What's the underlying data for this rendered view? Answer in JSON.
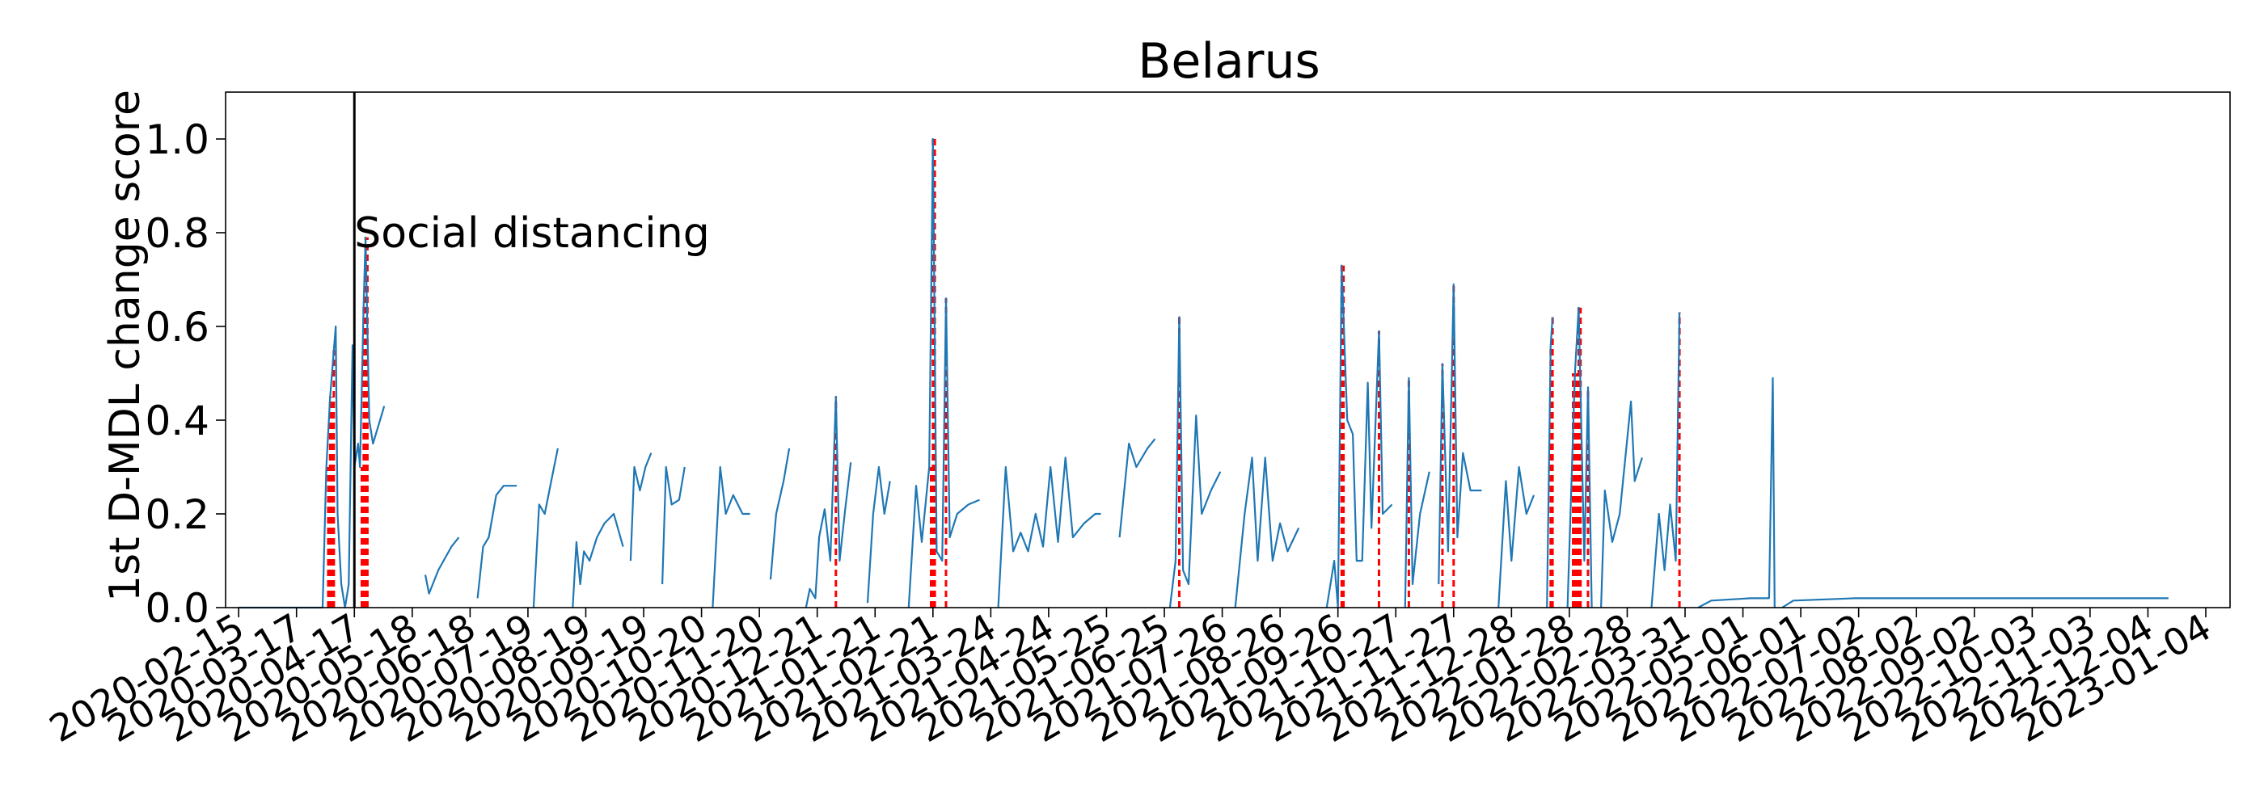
{
  "chart_data": {
    "type": "line",
    "title": "Belarus",
    "ylabel": "1st D-MDL change score",
    "xlabel": "",
    "xlim": [
      "2020-02-08",
      "2023-01-17"
    ],
    "ylim": [
      0.0,
      1.1
    ],
    "grid": false,
    "yticks": [
      "0.0",
      "0.2",
      "0.4",
      "0.6",
      "0.8",
      "1.0"
    ],
    "xticks": [
      "2020-02-15",
      "2020-03-17",
      "2020-04-17",
      "2020-05-18",
      "2020-06-18",
      "2020-07-19",
      "2020-08-19",
      "2020-09-19",
      "2020-10-20",
      "2020-11-20",
      "2020-12-21",
      "2021-01-21",
      "2021-02-21",
      "2021-03-24",
      "2021-04-24",
      "2021-05-25",
      "2021-06-25",
      "2021-07-26",
      "2021-08-26",
      "2021-09-26",
      "2021-10-27",
      "2021-11-27",
      "2021-12-28",
      "2022-01-28",
      "2022-02-28",
      "2022-03-31",
      "2022-05-01",
      "2022-06-01",
      "2022-07-02",
      "2022-08-02",
      "2022-09-02",
      "2022-10-03",
      "2022-11-03",
      "2022-12-04",
      "2023-01-04"
    ],
    "annotation": {
      "label": "Social distancing",
      "date": "2020-04-17",
      "y": 0.8
    },
    "series": [
      {
        "color": "#1f77b4",
        "points": [
          [
            "2020-02-15",
            0.0
          ],
          [
            "2020-03-31",
            0.0
          ],
          [
            "2020-04-02",
            0.3
          ],
          [
            "2020-04-04",
            0.45
          ],
          [
            "2020-04-06",
            0.55
          ],
          [
            "2020-04-07",
            0.6
          ],
          [
            "2020-04-08",
            0.2
          ],
          [
            "2020-04-10",
            0.05
          ],
          [
            "2020-04-12",
            0.0
          ],
          [
            "2020-04-14",
            0.05
          ],
          [
            "2020-04-16",
            0.56
          ],
          [
            "2020-04-17",
            0.3
          ],
          [
            "2020-04-19",
            0.35
          ],
          [
            "2020-04-20",
            0.3
          ],
          [
            "2020-04-22",
            0.65
          ],
          [
            "2020-04-23",
            0.79
          ],
          [
            "2020-04-25",
            0.4
          ],
          [
            "2020-04-27",
            0.35
          ],
          [
            "2020-04-30",
            0.39
          ],
          [
            "2020-05-03",
            0.43
          ],
          [
            "2020-05-04",
            null
          ],
          [
            "2020-05-25",
            0.07
          ],
          [
            "2020-05-27",
            0.03
          ],
          [
            "2020-06-01",
            0.08
          ],
          [
            "2020-06-08",
            0.13
          ],
          [
            "2020-06-12",
            0.15
          ],
          [
            "2020-06-13",
            null
          ],
          [
            "2020-06-22",
            0.02
          ],
          [
            "2020-06-25",
            0.13
          ],
          [
            "2020-06-28",
            0.15
          ],
          [
            "2020-07-02",
            0.24
          ],
          [
            "2020-07-06",
            0.26
          ],
          [
            "2020-07-10",
            0.26
          ],
          [
            "2020-07-13",
            0.26
          ],
          [
            "2020-07-14",
            null
          ],
          [
            "2020-07-22",
            0.0
          ],
          [
            "2020-07-25",
            0.22
          ],
          [
            "2020-07-28",
            0.2
          ],
          [
            "2020-08-01",
            0.28
          ],
          [
            "2020-08-04",
            0.34
          ],
          [
            "2020-08-05",
            null
          ],
          [
            "2020-08-12",
            0.0
          ],
          [
            "2020-08-14",
            0.14
          ],
          [
            "2020-08-16",
            0.05
          ],
          [
            "2020-08-18",
            0.12
          ],
          [
            "2020-08-21",
            0.1
          ],
          [
            "2020-08-25",
            0.15
          ],
          [
            "2020-08-29",
            0.18
          ],
          [
            "2020-09-03",
            0.2
          ],
          [
            "2020-09-08",
            0.13
          ],
          [
            "2020-09-09",
            null
          ],
          [
            "2020-09-12",
            0.1
          ],
          [
            "2020-09-14",
            0.3
          ],
          [
            "2020-09-17",
            0.25
          ],
          [
            "2020-09-20",
            0.3
          ],
          [
            "2020-09-23",
            0.33
          ],
          [
            "2020-09-24",
            null
          ],
          [
            "2020-09-29",
            0.05
          ],
          [
            "2020-10-01",
            0.3
          ],
          [
            "2020-10-04",
            0.22
          ],
          [
            "2020-10-08",
            0.23
          ],
          [
            "2020-10-11",
            0.3
          ],
          [
            "2020-10-12",
            null
          ],
          [
            "2020-10-26",
            0.0
          ],
          [
            "2020-10-30",
            0.3
          ],
          [
            "2020-11-02",
            0.2
          ],
          [
            "2020-11-06",
            0.24
          ],
          [
            "2020-11-11",
            0.2
          ],
          [
            "2020-11-15",
            0.2
          ],
          [
            "2020-11-16",
            null
          ],
          [
            "2020-11-26",
            0.06
          ],
          [
            "2020-11-29",
            0.2
          ],
          [
            "2020-12-03",
            0.27
          ],
          [
            "2020-12-06",
            0.34
          ],
          [
            "2020-12-07",
            null
          ],
          [
            "2020-12-15",
            0.0
          ],
          [
            "2020-12-17",
            0.04
          ],
          [
            "2020-12-20",
            0.02
          ],
          [
            "2020-12-22",
            0.15
          ],
          [
            "2020-12-25",
            0.21
          ],
          [
            "2020-12-28",
            0.1
          ],
          [
            "2020-12-31",
            0.45
          ],
          [
            "2021-01-02",
            0.1
          ],
          [
            "2021-01-05",
            0.21
          ],
          [
            "2021-01-08",
            0.31
          ],
          [
            "2021-01-09",
            null
          ],
          [
            "2021-01-17",
            0.01
          ],
          [
            "2021-01-20",
            0.2
          ],
          [
            "2021-01-23",
            0.3
          ],
          [
            "2021-01-26",
            0.2
          ],
          [
            "2021-01-29",
            0.27
          ],
          [
            "2021-01-30",
            null
          ],
          [
            "2021-02-08",
            0.0
          ],
          [
            "2021-02-12",
            0.26
          ],
          [
            "2021-02-15",
            0.14
          ],
          [
            "2021-02-19",
            0.3
          ],
          [
            "2021-02-21",
            1.0
          ],
          [
            "2021-02-23",
            0.12
          ],
          [
            "2021-02-26",
            0.1
          ],
          [
            "2021-02-28",
            0.66
          ],
          [
            "2021-03-02",
            0.15
          ],
          [
            "2021-03-06",
            0.2
          ],
          [
            "2021-03-12",
            0.22
          ],
          [
            "2021-03-18",
            0.23
          ],
          [
            "2021-03-19",
            null
          ],
          [
            "2021-03-28",
            0.0
          ],
          [
            "2021-04-01",
            0.3
          ],
          [
            "2021-04-05",
            0.12
          ],
          [
            "2021-04-09",
            0.16
          ],
          [
            "2021-04-13",
            0.12
          ],
          [
            "2021-04-17",
            0.2
          ],
          [
            "2021-04-21",
            0.13
          ],
          [
            "2021-04-25",
            0.3
          ],
          [
            "2021-04-29",
            0.14
          ],
          [
            "2021-05-03",
            0.32
          ],
          [
            "2021-05-07",
            0.15
          ],
          [
            "2021-05-13",
            0.18
          ],
          [
            "2021-05-19",
            0.2
          ],
          [
            "2021-05-22",
            0.2
          ],
          [
            "2021-05-23",
            null
          ],
          [
            "2021-06-01",
            0.15
          ],
          [
            "2021-06-06",
            0.35
          ],
          [
            "2021-06-10",
            0.3
          ],
          [
            "2021-06-16",
            0.34
          ],
          [
            "2021-06-20",
            0.36
          ],
          [
            "2021-06-21",
            null
          ],
          [
            "2021-06-28",
            0.0
          ],
          [
            "2021-07-01",
            0.1
          ],
          [
            "2021-07-03",
            0.62
          ],
          [
            "2021-07-05",
            0.08
          ],
          [
            "2021-07-08",
            0.05
          ],
          [
            "2021-07-12",
            0.41
          ],
          [
            "2021-07-15",
            0.2
          ],
          [
            "2021-07-20",
            0.25
          ],
          [
            "2021-07-25",
            0.29
          ],
          [
            "2021-07-26",
            null
          ],
          [
            "2021-08-02",
            0.0
          ],
          [
            "2021-08-07",
            0.2
          ],
          [
            "2021-08-11",
            0.32
          ],
          [
            "2021-08-14",
            0.1
          ],
          [
            "2021-08-18",
            0.32
          ],
          [
            "2021-08-22",
            0.1
          ],
          [
            "2021-08-26",
            0.18
          ],
          [
            "2021-08-30",
            0.12
          ],
          [
            "2021-09-05",
            0.17
          ],
          [
            "2021-09-07",
            null
          ],
          [
            "2021-09-20",
            0.0
          ],
          [
            "2021-09-24",
            0.1
          ],
          [
            "2021-09-26",
            0.0
          ],
          [
            "2021-09-28",
            0.73
          ],
          [
            "2021-10-01",
            0.4
          ],
          [
            "2021-10-04",
            0.37
          ],
          [
            "2021-10-06",
            0.1
          ],
          [
            "2021-10-09",
            0.1
          ],
          [
            "2021-10-12",
            0.48
          ],
          [
            "2021-10-14",
            0.17
          ],
          [
            "2021-10-18",
            0.59
          ],
          [
            "2021-10-20",
            0.2
          ],
          [
            "2021-10-25",
            0.22
          ],
          [
            "2021-10-26",
            null
          ],
          [
            "2021-11-01",
            0.0
          ],
          [
            "2021-11-03",
            0.49
          ],
          [
            "2021-11-05",
            0.05
          ],
          [
            "2021-11-09",
            0.2
          ],
          [
            "2021-11-14",
            0.29
          ],
          [
            "2021-11-15",
            null
          ],
          [
            "2021-11-19",
            0.05
          ],
          [
            "2021-11-21",
            0.52
          ],
          [
            "2021-11-24",
            0.12
          ],
          [
            "2021-11-27",
            0.69
          ],
          [
            "2021-11-29",
            0.15
          ],
          [
            "2021-12-02",
            0.33
          ],
          [
            "2021-12-06",
            0.25
          ],
          [
            "2021-12-12",
            0.25
          ],
          [
            "2021-12-13",
            null
          ],
          [
            "2021-12-21",
            0.0
          ],
          [
            "2021-12-25",
            0.27
          ],
          [
            "2021-12-28",
            0.1
          ],
          [
            "2022-01-01",
            0.3
          ],
          [
            "2022-01-05",
            0.2
          ],
          [
            "2022-01-09",
            0.24
          ],
          [
            "2022-01-10",
            null
          ],
          [
            "2022-01-16",
            0.0
          ],
          [
            "2022-01-18",
            0.56
          ],
          [
            "2022-01-19",
            0.62
          ],
          [
            "2022-01-20",
            null
          ],
          [
            "2022-01-27",
            0.0
          ],
          [
            "2022-01-31",
            0.5
          ],
          [
            "2022-02-02",
            0.64
          ],
          [
            "2022-02-05",
            0.1
          ],
          [
            "2022-02-07",
            0.47
          ],
          [
            "2022-02-09",
            0.0
          ],
          [
            "2022-02-10",
            null
          ],
          [
            "2022-02-14",
            0.0
          ],
          [
            "2022-02-16",
            0.25
          ],
          [
            "2022-02-20",
            0.14
          ],
          [
            "2022-02-24",
            0.2
          ],
          [
            "2022-03-02",
            0.44
          ],
          [
            "2022-03-04",
            0.27
          ],
          [
            "2022-03-08",
            0.32
          ],
          [
            "2022-03-09",
            null
          ],
          [
            "2022-03-13",
            0.0
          ],
          [
            "2022-03-17",
            0.2
          ],
          [
            "2022-03-20",
            0.08
          ],
          [
            "2022-03-23",
            0.22
          ],
          [
            "2022-03-26",
            0.1
          ],
          [
            "2022-03-28",
            0.63
          ],
          [
            "2022-03-29",
            null
          ],
          [
            "2022-04-07",
            0.0
          ],
          [
            "2022-04-14",
            0.015
          ],
          [
            "2022-05-05",
            0.02
          ],
          [
            "2022-05-15",
            0.02
          ],
          [
            "2022-05-17",
            0.49
          ],
          [
            "2022-05-18",
            0.0
          ],
          [
            "2022-05-19",
            null
          ],
          [
            "2022-05-22",
            0.0
          ],
          [
            "2022-05-28",
            0.015
          ],
          [
            "2022-06-30",
            0.02
          ],
          [
            "2022-09-10",
            0.02
          ],
          [
            "2022-12-15",
            0.02
          ]
        ]
      }
    ],
    "change_points": [
      "2020-04-03",
      "2020-04-04",
      "2020-04-05",
      "2020-04-06",
      "2020-04-21",
      "2020-04-22",
      "2020-04-23",
      "2020-04-24",
      "2020-12-31",
      "2021-02-20",
      "2021-02-21",
      "2021-02-22",
      "2021-02-28",
      "2021-07-03",
      "2021-09-28",
      "2021-09-29",
      "2021-10-18",
      "2021-11-03",
      "2021-11-21",
      "2021-11-27",
      "2022-01-18",
      "2022-01-19",
      "2022-01-30",
      "2022-01-31",
      "2022-02-01",
      "2022-02-02",
      "2022-02-03",
      "2022-02-07",
      "2022-03-28"
    ],
    "change_point_color": "#ff0000",
    "annotation_line_color": "#000000"
  }
}
